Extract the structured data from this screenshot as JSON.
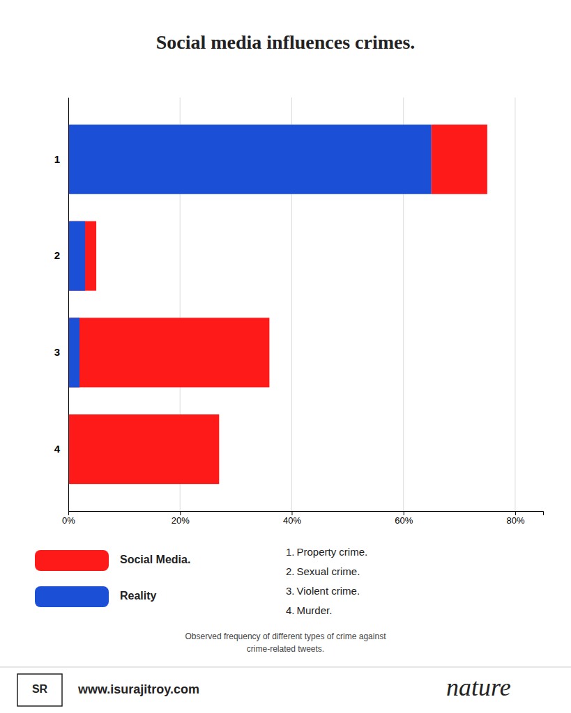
{
  "chart_data": {
    "type": "bar",
    "orientation": "horizontal",
    "title": "Social media influences crimes.",
    "categories": [
      "1",
      "2",
      "3",
      "4"
    ],
    "series": [
      {
        "name": "Social Media.",
        "color": "#ff1a1a",
        "values": [
          10,
          5,
          36,
          27
        ]
      },
      {
        "name": "Reality",
        "color": "#1a4fd6",
        "values": [
          65,
          3,
          2,
          0
        ]
      }
    ],
    "xlim": [
      0,
      85
    ],
    "xticks": [
      {
        "value": 0,
        "label": "0%"
      },
      {
        "value": 20,
        "label": "20%"
      },
      {
        "value": 40,
        "label": "40%"
      },
      {
        "value": 60,
        "label": "60%"
      },
      {
        "value": 80,
        "label": "80%"
      }
    ],
    "grid": true,
    "annotations": [
      "1. Property crime.",
      "2. Sexual crime.",
      "3. Violent crime.",
      "4. Murder.",
      "Observed frequency of different types of crime against\ncrime-related tweets.",
      "SR",
      "www.isurajitroy.com",
      "nature"
    ]
  }
}
